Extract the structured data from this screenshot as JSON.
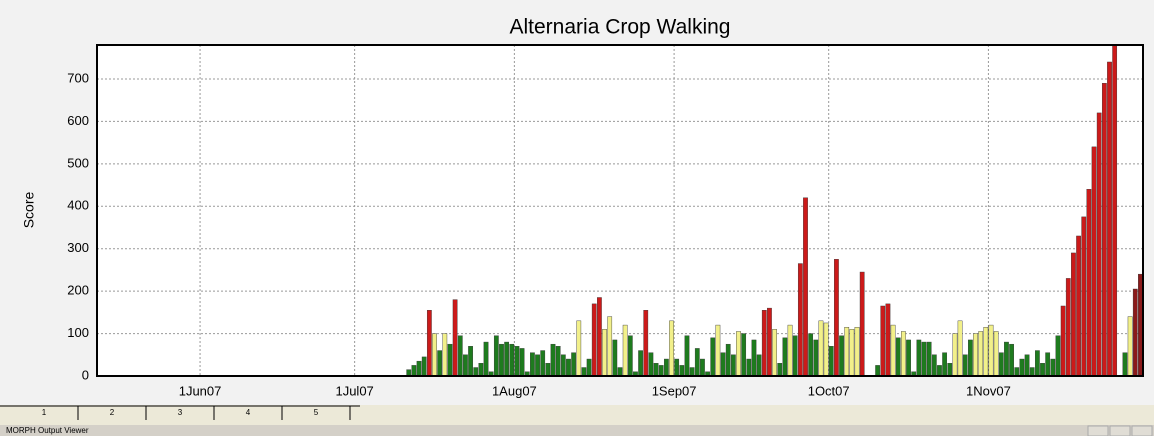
{
  "chart_data": {
    "type": "bar",
    "title": "Alternaria Crop Walking",
    "y_label": "Score",
    "xlim": [
      "2007-05-12",
      "2007-12-01"
    ],
    "ylim": [
      0,
      780
    ],
    "yticks": [
      0,
      100,
      200,
      300,
      400,
      500,
      600,
      700
    ],
    "grid": true,
    "xticks": [
      {
        "value": "2007-06-01",
        "label": "1Jun07"
      },
      {
        "value": "2007-07-01",
        "label": "1Jul07"
      },
      {
        "value": "2007-08-01",
        "label": "1Aug07"
      },
      {
        "value": "2007-09-01",
        "label": "1Sep07"
      },
      {
        "value": "2007-10-01",
        "label": "1Oct07"
      },
      {
        "value": "2007-11-01",
        "label": "1Nov07"
      }
    ],
    "x": [
      "2007-07-11",
      "2007-07-12",
      "2007-07-13",
      "2007-07-14",
      "2007-07-15",
      "2007-07-16",
      "2007-07-17",
      "2007-07-18",
      "2007-07-19",
      "2007-07-20",
      "2007-07-21",
      "2007-07-22",
      "2007-07-23",
      "2007-07-24",
      "2007-07-25",
      "2007-07-26",
      "2007-07-27",
      "2007-07-28",
      "2007-07-29",
      "2007-07-30",
      "2007-07-31",
      "2007-08-01",
      "2007-08-02",
      "2007-08-03",
      "2007-08-04",
      "2007-08-05",
      "2007-08-06",
      "2007-08-07",
      "2007-08-08",
      "2007-08-09",
      "2007-08-10",
      "2007-08-11",
      "2007-08-12",
      "2007-08-13",
      "2007-08-14",
      "2007-08-15",
      "2007-08-16",
      "2007-08-17",
      "2007-08-18",
      "2007-08-19",
      "2007-08-20",
      "2007-08-21",
      "2007-08-22",
      "2007-08-23",
      "2007-08-24",
      "2007-08-25",
      "2007-08-26",
      "2007-08-27",
      "2007-08-28",
      "2007-08-29",
      "2007-08-30",
      "2007-08-31",
      "2007-09-01",
      "2007-09-02",
      "2007-09-03",
      "2007-09-04",
      "2007-09-05",
      "2007-09-06",
      "2007-09-07",
      "2007-09-08",
      "2007-09-09",
      "2007-09-10",
      "2007-09-11",
      "2007-09-12",
      "2007-09-13",
      "2007-09-14",
      "2007-09-15",
      "2007-09-16",
      "2007-09-17",
      "2007-09-18",
      "2007-09-19",
      "2007-09-20",
      "2007-09-21",
      "2007-09-22",
      "2007-09-23",
      "2007-09-24",
      "2007-09-25",
      "2007-09-26",
      "2007-09-27",
      "2007-09-28",
      "2007-09-29",
      "2007-09-30",
      "2007-10-01",
      "2007-10-02",
      "2007-10-03",
      "2007-10-04",
      "2007-10-05",
      "2007-10-06",
      "2007-10-07",
      "2007-10-08",
      "2007-10-09",
      "2007-10-10",
      "2007-10-11",
      "2007-10-12",
      "2007-10-13",
      "2007-10-14",
      "2007-10-15",
      "2007-10-16",
      "2007-10-17",
      "2007-10-18",
      "2007-10-19",
      "2007-10-20",
      "2007-10-21",
      "2007-10-22",
      "2007-10-23",
      "2007-10-24",
      "2007-10-25",
      "2007-10-26",
      "2007-10-27",
      "2007-10-28",
      "2007-10-29",
      "2007-10-30",
      "2007-10-31",
      "2007-11-01",
      "2007-11-02",
      "2007-11-03",
      "2007-11-04",
      "2007-11-05",
      "2007-11-06",
      "2007-11-07",
      "2007-11-08",
      "2007-11-09",
      "2007-11-10",
      "2007-11-11",
      "2007-11-12",
      "2007-11-13",
      "2007-11-14",
      "2007-11-15",
      "2007-11-16",
      "2007-11-17",
      "2007-11-18",
      "2007-11-19",
      "2007-11-20",
      "2007-11-21",
      "2007-11-22",
      "2007-11-23",
      "2007-11-24",
      "2007-11-25",
      "2007-11-26",
      "2007-11-27",
      "2007-11-28",
      "2007-11-29",
      "2007-11-30"
    ],
    "values": [
      15,
      25,
      35,
      45,
      155,
      100,
      60,
      100,
      75,
      180,
      95,
      50,
      70,
      20,
      30,
      80,
      10,
      95,
      75,
      80,
      75,
      70,
      65,
      10,
      55,
      50,
      60,
      30,
      75,
      70,
      50,
      40,
      55,
      130,
      20,
      40,
      170,
      185,
      110,
      140,
      85,
      20,
      120,
      95,
      10,
      60,
      155,
      55,
      30,
      25,
      40,
      130,
      40,
      25,
      95,
      20,
      65,
      40,
      10,
      90,
      120,
      55,
      75,
      50,
      105,
      100,
      40,
      85,
      50,
      155,
      160,
      110,
      30,
      90,
      120,
      95,
      265,
      420,
      100,
      85,
      130,
      125,
      70,
      275,
      95,
      115,
      110,
      115,
      245,
      0,
      0,
      25,
      165,
      170,
      120,
      90,
      105,
      85,
      10,
      85,
      80,
      80,
      50,
      25,
      55,
      30,
      100,
      130,
      50,
      85,
      100,
      105,
      115,
      120,
      105,
      55,
      80,
      75,
      20,
      40,
      50,
      20,
      60,
      30,
      55,
      40,
      95,
      165,
      230,
      290,
      330,
      375,
      440,
      540,
      620,
      690,
      740,
      780,
      0,
      55,
      140,
      205,
      240
    ],
    "colors": [
      "#1e7b1e",
      "#1e7b1e",
      "#1e7b1e",
      "#1e7b1e",
      "#cc1a1a",
      "#f2f08a",
      "#1e7b1e",
      "#f2f08a",
      "#1e7b1e",
      "#cc1a1a",
      "#1e7b1e",
      "#1e7b1e",
      "#1e7b1e",
      "#1e7b1e",
      "#1e7b1e",
      "#1e7b1e",
      "#1e7b1e",
      "#1e7b1e",
      "#1e7b1e",
      "#1e7b1e",
      "#1e7b1e",
      "#1e7b1e",
      "#1e7b1e",
      "#1e7b1e",
      "#1e7b1e",
      "#1e7b1e",
      "#1e7b1e",
      "#1e7b1e",
      "#1e7b1e",
      "#1e7b1e",
      "#1e7b1e",
      "#1e7b1e",
      "#1e7b1e",
      "#f2f08a",
      "#1e7b1e",
      "#1e7b1e",
      "#cc1a1a",
      "#cc1a1a",
      "#f2f08a",
      "#f2f08a",
      "#1e7b1e",
      "#1e7b1e",
      "#f2f08a",
      "#1e7b1e",
      "#1e7b1e",
      "#1e7b1e",
      "#cc1a1a",
      "#1e7b1e",
      "#1e7b1e",
      "#1e7b1e",
      "#1e7b1e",
      "#f2f08a",
      "#1e7b1e",
      "#1e7b1e",
      "#1e7b1e",
      "#1e7b1e",
      "#1e7b1e",
      "#1e7b1e",
      "#1e7b1e",
      "#1e7b1e",
      "#f2f08a",
      "#1e7b1e",
      "#1e7b1e",
      "#1e7b1e",
      "#f2f08a",
      "#1e7b1e",
      "#1e7b1e",
      "#1e7b1e",
      "#1e7b1e",
      "#cc1a1a",
      "#cc1a1a",
      "#f2f08a",
      "#1e7b1e",
      "#1e7b1e",
      "#f2f08a",
      "#1e7b1e",
      "#cc1a1a",
      "#cc1a1a",
      "#1e7b1e",
      "#1e7b1e",
      "#f2f08a",
      "#f2f08a",
      "#1e7b1e",
      "#cc1a1a",
      "#1e7b1e",
      "#f2f08a",
      "#f2f08a",
      "#f2f08a",
      "#cc1a1a",
      "#1e7b1e",
      "#1e7b1e",
      "#1e7b1e",
      "#cc1a1a",
      "#cc1a1a",
      "#f2f08a",
      "#1e7b1e",
      "#f2f08a",
      "#1e7b1e",
      "#1e7b1e",
      "#1e7b1e",
      "#1e7b1e",
      "#1e7b1e",
      "#1e7b1e",
      "#1e7b1e",
      "#1e7b1e",
      "#1e7b1e",
      "#f2f08a",
      "#f2f08a",
      "#1e7b1e",
      "#1e7b1e",
      "#f2f08a",
      "#f2f08a",
      "#f2f08a",
      "#f2f08a",
      "#f2f08a",
      "#1e7b1e",
      "#1e7b1e",
      "#1e7b1e",
      "#1e7b1e",
      "#1e7b1e",
      "#1e7b1e",
      "#1e7b1e",
      "#1e7b1e",
      "#1e7b1e",
      "#1e7b1e",
      "#1e7b1e",
      "#1e7b1e",
      "#cc1a1a",
      "#cc1a1a",
      "#cc1a1a",
      "#cc1a1a",
      "#cc1a1a",
      "#cc1a1a",
      "#cc1a1a",
      "#cc1a1a",
      "#cc1a1a",
      "#cc1a1a",
      "#cc1a1a",
      "#1e7b1e",
      "#1e7b1e",
      "#f2f08a",
      "#8b1a1a",
      "#8b1a1a"
    ]
  },
  "window": {
    "tabs": [
      "1",
      "2",
      "3",
      "4",
      "5"
    ],
    "status": "MORPH Output Viewer"
  }
}
